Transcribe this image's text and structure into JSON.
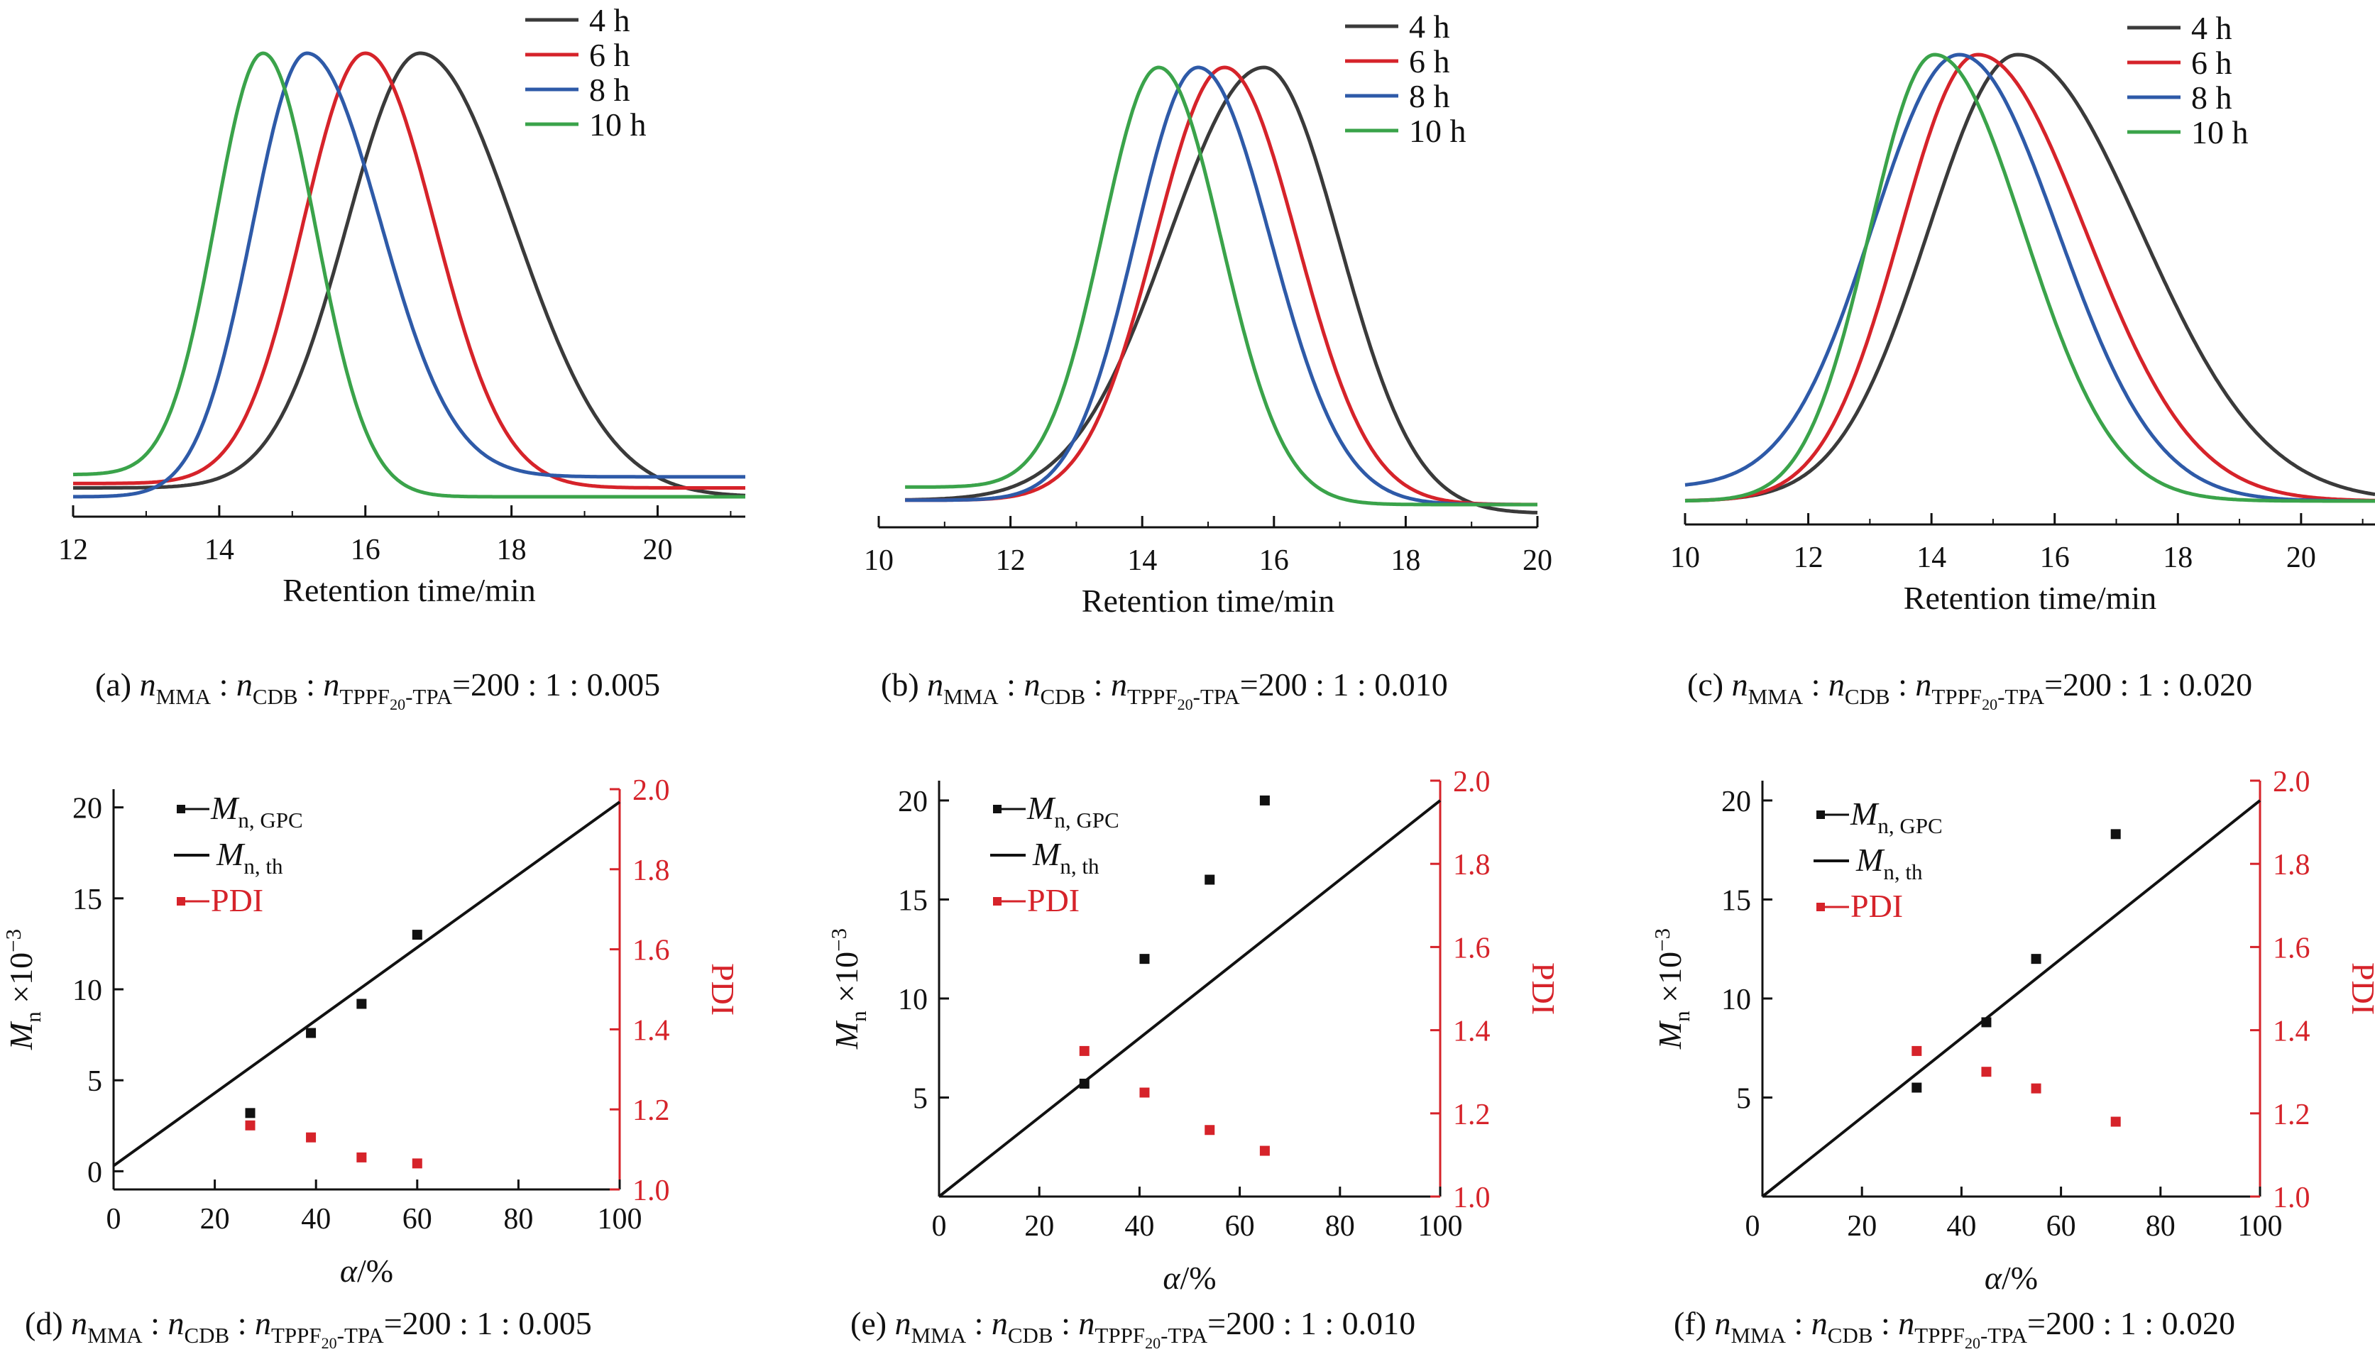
{
  "chart_data": [
    {
      "id": "a",
      "type": "line",
      "caption": {
        "label": "(a)",
        "ratio": "=200 : 1 : 0.005"
      },
      "xlabel": "Retention time/min",
      "xlim": [
        12,
        21.2
      ],
      "xticks": [
        12,
        14,
        16,
        18,
        20
      ],
      "ylim": [
        0,
        1
      ],
      "series": [
        {
          "name": "4 h",
          "color": "#3a3a3a",
          "baseline": 0.02,
          "peak_x": 16.75,
          "width_left": 1.0,
          "width_right": 1.3,
          "pre_level": 0.02,
          "post_level": 0.0
        },
        {
          "name": "6 h",
          "color": "#d6232a",
          "baseline": 0.02,
          "peak_x": 16.0,
          "width_left": 0.85,
          "width_right": 0.95,
          "pre_level": 0.03,
          "post_level": 0.02
        },
        {
          "name": "8 h",
          "color": "#2e5aa8",
          "baseline": 0.01,
          "peak_x": 15.2,
          "width_left": 0.75,
          "width_right": 1.0,
          "pre_level": 0.0,
          "post_level": 0.045
        },
        {
          "name": "10 h",
          "color": "#3aa34a",
          "baseline": 0.0,
          "peak_x": 14.6,
          "width_left": 0.65,
          "width_right": 0.72,
          "pre_level": 0.05,
          "post_level": 0.0
        }
      ]
    },
    {
      "id": "b",
      "type": "line",
      "caption": {
        "label": "(b)",
        "ratio": "=200 : 1 : 0.010"
      },
      "xlabel": "Retention time/min",
      "xlim": [
        10,
        20
      ],
      "xticks": [
        10,
        12,
        14,
        16,
        18,
        20
      ],
      "ylim": [
        0,
        1
      ],
      "series": [
        {
          "name": "4 h",
          "color": "#3a3a3a",
          "baseline": 0.0,
          "peak_x": 15.85,
          "width_left": 1.45,
          "width_right": 1.15,
          "pre_level": 0.01,
          "post_level": -0.02
        },
        {
          "name": "6 h",
          "color": "#d6232a",
          "baseline": 0.0,
          "peak_x": 15.25,
          "width_left": 1.05,
          "width_right": 1.1,
          "pre_level": 0.01,
          "post_level": 0.0
        },
        {
          "name": "8 h",
          "color": "#2e5aa8",
          "baseline": 0.0,
          "peak_x": 14.85,
          "width_left": 0.95,
          "width_right": 1.1,
          "pre_level": 0.01,
          "post_level": 0.0
        },
        {
          "name": "10 h",
          "color": "#3aa34a",
          "baseline": 0.0,
          "peak_x": 14.25,
          "width_left": 0.85,
          "width_right": 0.95,
          "pre_level": 0.04,
          "post_level": 0.0
        }
      ]
    },
    {
      "id": "c",
      "type": "line",
      "caption": {
        "label": "(c)",
        "ratio": "=200 : 1 : 0.020"
      },
      "xlabel": "Retention time/min",
      "xlim": [
        10,
        21.2
      ],
      "xticks": [
        10,
        12,
        14,
        16,
        18,
        20
      ],
      "ylim": [
        0,
        1
      ],
      "series": [
        {
          "name": "4 h",
          "color": "#3a3a3a",
          "baseline": 0.0,
          "peak_x": 15.4,
          "width_left": 1.45,
          "width_right": 2.0,
          "pre_level": 0.0,
          "post_level": 0.0
        },
        {
          "name": "6 h",
          "color": "#d6232a",
          "baseline": 0.0,
          "peak_x": 14.75,
          "width_left": 1.25,
          "width_right": 1.75,
          "pre_level": 0.0,
          "post_level": 0.0
        },
        {
          "name": "8 h",
          "color": "#2e5aa8",
          "baseline": 0.0,
          "peak_x": 14.45,
          "width_left": 1.4,
          "width_right": 1.6,
          "pre_level": 0.03,
          "post_level": 0.0
        },
        {
          "name": "10 h",
          "color": "#3aa34a",
          "baseline": 0.0,
          "peak_x": 14.05,
          "width_left": 1.05,
          "width_right": 1.45,
          "pre_level": 0.0,
          "post_level": 0.0
        }
      ]
    },
    {
      "id": "d",
      "type": "scatter",
      "caption": {
        "label": "(d)",
        "ratio": "=200 : 1 : 0.005"
      },
      "xlabel": "α/%",
      "ylabel": "Mn ×10−3",
      "y2label": "PDI",
      "xlim": [
        0,
        100
      ],
      "xticks": [
        0,
        20,
        40,
        60,
        80,
        100
      ],
      "ylim": [
        -1,
        21
      ],
      "yticks": [
        0,
        5,
        10,
        15,
        20
      ],
      "y2lim": [
        1.0,
        2.0
      ],
      "y2ticks": [
        "1.0",
        "1.2",
        "1.4",
        "1.6",
        "1.8",
        "2.0"
      ],
      "mn_gpc": {
        "x": [
          27,
          39,
          49,
          60
        ],
        "y": [
          3.2,
          7.6,
          9.2,
          13.0
        ]
      },
      "mn_th": {
        "x": [
          0,
          100
        ],
        "y": [
          0.3,
          20.3
        ]
      },
      "pdi": {
        "x": [
          27,
          39,
          49,
          60
        ],
        "y": [
          1.16,
          1.13,
          1.08,
          1.065
        ]
      }
    },
    {
      "id": "e",
      "type": "scatter",
      "caption": {
        "label": "(e)",
        "ratio": "=200 : 1 : 0.010"
      },
      "xlabel": "α/%",
      "ylabel": "Mn ×10−3",
      "y2label": "PDI",
      "xlim": [
        0,
        100
      ],
      "xticks": [
        0,
        20,
        40,
        60,
        80,
        100
      ],
      "ylim": [
        0,
        21
      ],
      "yticks": [
        5,
        10,
        15,
        20
      ],
      "y2lim": [
        1.0,
        2.0
      ],
      "y2ticks": [
        "1.0",
        "1.2",
        "1.4",
        "1.6",
        "1.8",
        "2.0"
      ],
      "mn_gpc": {
        "x": [
          29,
          41,
          54,
          65
        ],
        "y": [
          5.7,
          12.0,
          16.0,
          20.0
        ]
      },
      "mn_th": {
        "x": [
          0,
          100
        ],
        "y": [
          0.0,
          20.0
        ]
      },
      "pdi": {
        "x": [
          29,
          41,
          54,
          65
        ],
        "y": [
          1.35,
          1.25,
          1.16,
          1.11
        ]
      }
    },
    {
      "id": "f",
      "type": "scatter",
      "caption": {
        "label": "(f)",
        "ratio": "=200 : 1 : 0.020"
      },
      "xlabel": "α/%",
      "ylabel": "Mn ×10−3",
      "y2label": "PDI",
      "xlim": [
        0,
        100
      ],
      "xticks": [
        20,
        40,
        60,
        80,
        100
      ],
      "ylim": [
        0,
        21
      ],
      "yticks": [
        5,
        10,
        15,
        20
      ],
      "y2lim": [
        1.0,
        2.0
      ],
      "y2ticks": [
        "1.0",
        "1.2",
        "1.4",
        "1.6",
        "1.8",
        "2.0"
      ],
      "mn_gpc": {
        "x": [
          31,
          45,
          55,
          71
        ],
        "y": [
          5.5,
          8.8,
          12.0,
          18.3
        ]
      },
      "mn_th": {
        "x": [
          0,
          100
        ],
        "y": [
          0.0,
          20.0
        ]
      },
      "pdi": {
        "x": [
          31,
          45,
          55,
          71
        ],
        "y": [
          1.35,
          1.3,
          1.26,
          1.18
        ]
      }
    }
  ],
  "text": {
    "zero_tick": "0",
    "legend_gpc_sym": "M",
    "legend_gpc_sub": "n, GPC",
    "legend_th_sym": "M",
    "legend_th_sub": "n, th",
    "legend_pdi": "PDI",
    "ylab_M": "M",
    "ylab_n": "n",
    "ylab_rest": " ×10",
    "ylab_exp": "−3",
    "y2lab": "PDI",
    "xlab_alpha": "α",
    "xlab_unit": "/%",
    "cap_n": "n",
    "cap_mma": "MMA",
    "cap_cdb": "CDB",
    "cap_tpa_a": "TPPF",
    "cap_tpa_b": "20",
    "cap_tpa_c": "-TPA",
    "cap_sep": " : "
  }
}
